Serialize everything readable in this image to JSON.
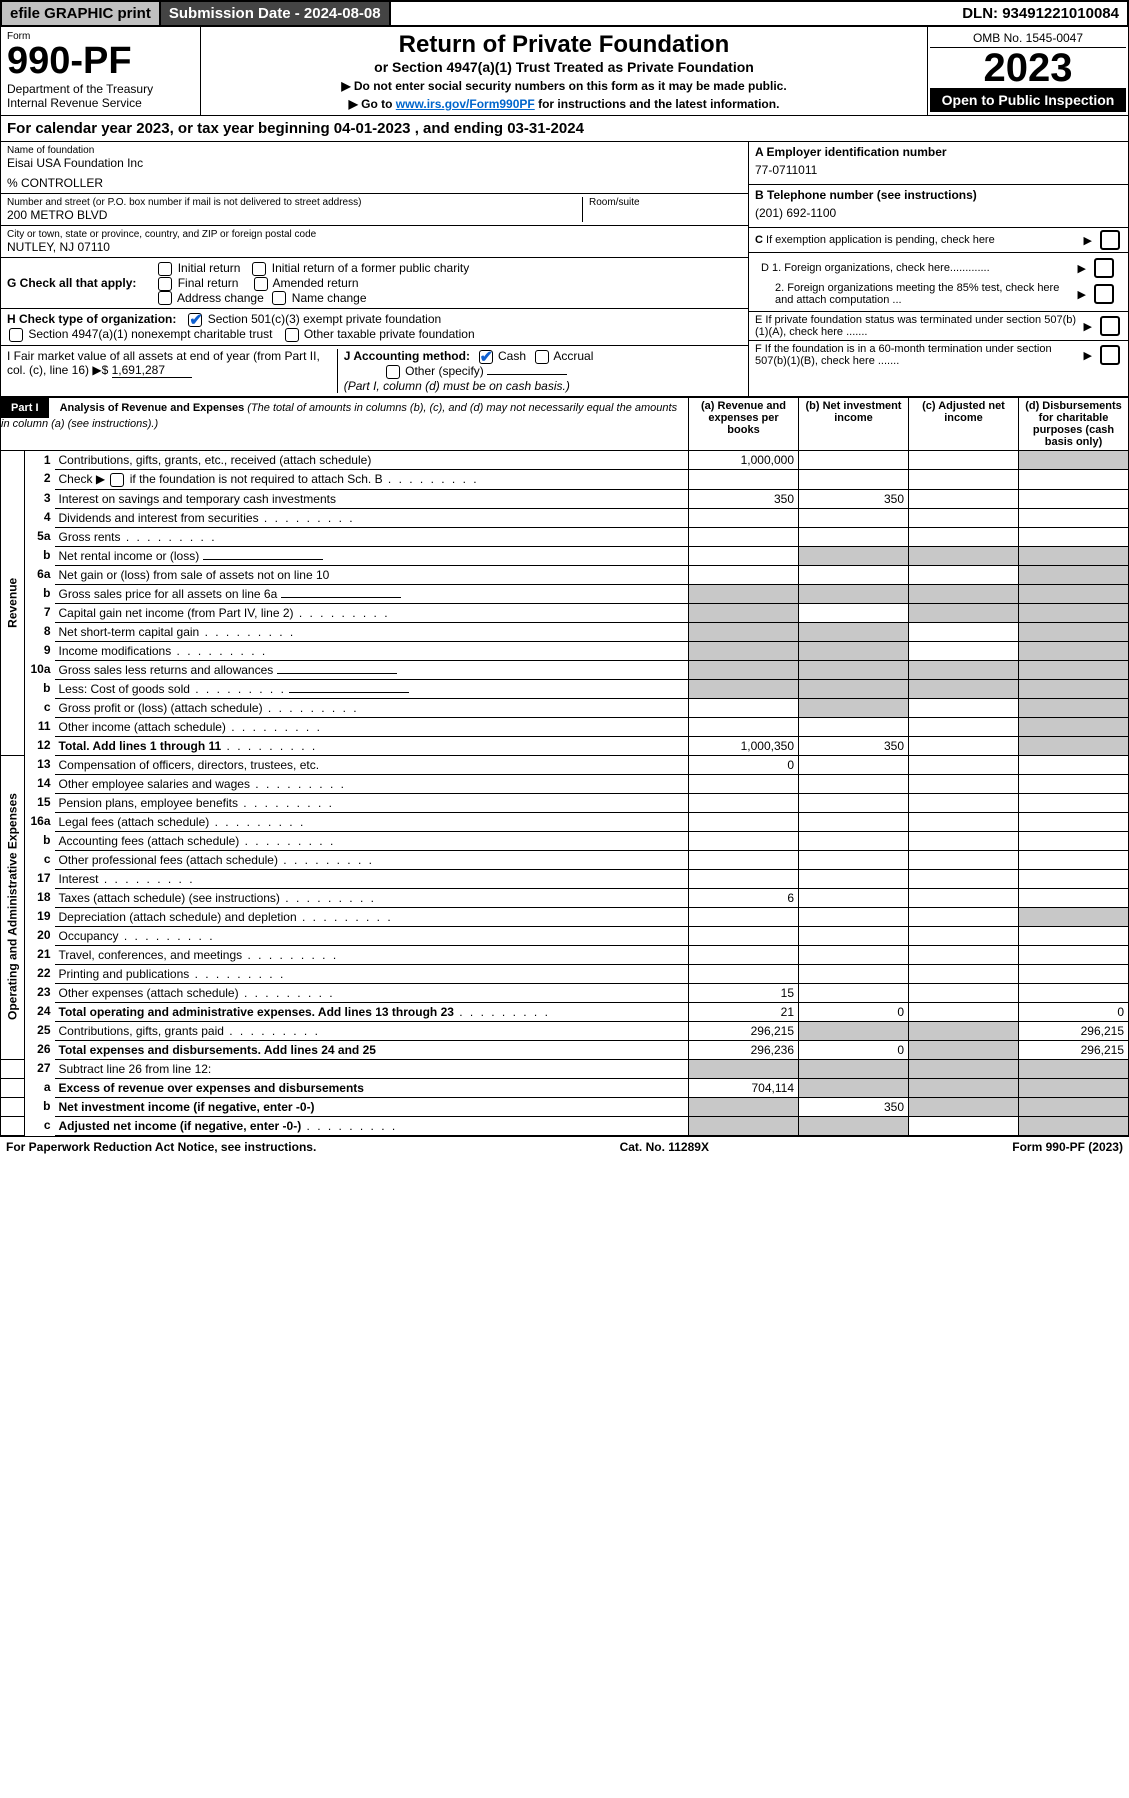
{
  "topbar": {
    "efile": "efile GRAPHIC print",
    "submission": "Submission Date - 2024-08-08",
    "dln": "DLN: 93491221010084"
  },
  "header": {
    "form_label": "Form",
    "form_number": "990-PF",
    "dept": "Department of the Treasury",
    "irs": "Internal Revenue Service",
    "title": "Return of Private Foundation",
    "subtitle": "or Section 4947(a)(1) Trust Treated as Private Foundation",
    "note1": "▶ Do not enter social security numbers on this form as it may be made public.",
    "note2_pre": "▶ Go to ",
    "note2_link": "www.irs.gov/Form990PF",
    "note2_post": " for instructions and the latest information.",
    "omb": "OMB No. 1545-0047",
    "year": "2023",
    "inspection": "Open to Public Inspection"
  },
  "cal_year": "For calendar year 2023, or tax year beginning 04-01-2023                              , and ending 03-31-2024",
  "entity": {
    "name_label": "Name of foundation",
    "name": "Eisai USA Foundation Inc",
    "controller": "% CONTROLLER",
    "addr_label": "Number and street (or P.O. box number if mail is not delivered to street address)",
    "addr": "200 METRO BLVD",
    "room_label": "Room/suite",
    "city_label": "City or town, state or province, country, and ZIP or foreign postal code",
    "city": "NUTLEY, NJ  07110"
  },
  "boxA": {
    "label": "A Employer identification number",
    "val": "77-0711011"
  },
  "boxB": {
    "label": "B Telephone number (see instructions)",
    "val": "(201) 692-1100"
  },
  "boxC": {
    "label": "C If exemption application is pending, check here"
  },
  "boxD": {
    "d1": "D 1. Foreign organizations, check here.............",
    "d2": "2. Foreign organizations meeting the 85% test, check here and attach computation ..."
  },
  "boxE": {
    "label": "E If private foundation status was terminated under section 507(b)(1)(A), check here ......."
  },
  "boxF": {
    "label": "F If the foundation is in a 60-month termination under section 507(b)(1)(B), check here ......."
  },
  "checkG": {
    "label": "G Check all that apply:",
    "opts": [
      "Initial return",
      "Initial return of a former public charity",
      "Final return",
      "Amended return",
      "Address change",
      "Name change"
    ]
  },
  "checkH": {
    "label": "H Check type of organization:",
    "opt1": "Section 501(c)(3) exempt private foundation",
    "opt2": "Section 4947(a)(1) nonexempt charitable trust",
    "opt3": "Other taxable private foundation"
  },
  "boxI": {
    "label": "I Fair market value of all assets at end of year (from Part II, col. (c), line 16)",
    "arrow": "▶$",
    "val": "1,691,287"
  },
  "boxJ": {
    "label": "J Accounting method:",
    "cash": "Cash",
    "accrual": "Accrual",
    "other": "Other (specify)",
    "note": "(Part I, column (d) must be on cash basis.)"
  },
  "part1": {
    "title_part": "Part I",
    "title": "Analysis of Revenue and Expenses",
    "title_note": "(The total of amounts in columns (b), (c), and (d) may not necessarily equal the amounts in column (a) (see instructions).)",
    "cols": {
      "a": "(a) Revenue and expenses per books",
      "b": "(b) Net investment income",
      "c": "(c) Adjusted net income",
      "d": "(d) Disbursements for charitable purposes (cash basis only)"
    },
    "revenue_label": "Revenue",
    "expenses_label": "Operating and Administrative Expenses",
    "lines": {
      "l1": {
        "no": "1",
        "desc": "Contributions, gifts, grants, etc., received (attach schedule)",
        "a": "1,000,000",
        "d_shade": true
      },
      "l2": {
        "no": "2",
        "desc_pre": "Check ▶ ",
        "desc_post": " if the foundation is not required to attach Sch. B",
        "dots": true
      },
      "l3": {
        "no": "3",
        "desc": "Interest on savings and temporary cash investments",
        "a": "350",
        "b": "350"
      },
      "l4": {
        "no": "4",
        "desc": "Dividends and interest from securities",
        "dots": true
      },
      "l5a": {
        "no": "5a",
        "desc": "Gross rents",
        "dots": true
      },
      "l5b": {
        "no": "b",
        "desc": "Net rental income or (loss)",
        "inline_box": true,
        "bcd_shade": true
      },
      "l6a": {
        "no": "6a",
        "desc": "Net gain or (loss) from sale of assets not on line 10",
        "d_shade": true
      },
      "l6b": {
        "no": "b",
        "desc": "Gross sales price for all assets on line 6a",
        "inline_box": true,
        "all_shade": true
      },
      "l7": {
        "no": "7",
        "desc": "Capital gain net income (from Part IV, line 2)",
        "dots": true,
        "a_shade": true,
        "cd_shade": true
      },
      "l8": {
        "no": "8",
        "desc": "Net short-term capital gain",
        "dots": true,
        "ab_shade": true,
        "d_shade": true
      },
      "l9": {
        "no": "9",
        "desc": "Income modifications",
        "dots": true,
        "ab_shade": true,
        "d_shade": true
      },
      "l10a": {
        "no": "10a",
        "desc": "Gross sales less returns and allowances",
        "inline_box": true,
        "all_shade": true
      },
      "l10b": {
        "no": "b",
        "desc": "Less: Cost of goods sold",
        "dots": true,
        "inline_box": true,
        "all_shade": true
      },
      "l10c": {
        "no": "c",
        "desc": "Gross profit or (loss) (attach schedule)",
        "dots": true,
        "b_shade": true,
        "d_shade": true
      },
      "l11": {
        "no": "11",
        "desc": "Other income (attach schedule)",
        "dots": true,
        "d_shade": true
      },
      "l12": {
        "no": "12",
        "desc": "Total. Add lines 1 through 11",
        "bold": true,
        "dots": true,
        "a": "1,000,350",
        "b": "350",
        "d_shade": true
      },
      "l13": {
        "no": "13",
        "desc": "Compensation of officers, directors, trustees, etc.",
        "a": "0"
      },
      "l14": {
        "no": "14",
        "desc": "Other employee salaries and wages",
        "dots": true
      },
      "l15": {
        "no": "15",
        "desc": "Pension plans, employee benefits",
        "dots": true
      },
      "l16a": {
        "no": "16a",
        "desc": "Legal fees (attach schedule)",
        "dots": true
      },
      "l16b": {
        "no": "b",
        "desc": "Accounting fees (attach schedule)",
        "dots": true
      },
      "l16c": {
        "no": "c",
        "desc": "Other professional fees (attach schedule)",
        "dots": true
      },
      "l17": {
        "no": "17",
        "desc": "Interest",
        "dots": true
      },
      "l18": {
        "no": "18",
        "desc": "Taxes (attach schedule) (see instructions)",
        "dots": true,
        "a": "6"
      },
      "l19": {
        "no": "19",
        "desc": "Depreciation (attach schedule) and depletion",
        "dots": true,
        "d_shade": true
      },
      "l20": {
        "no": "20",
        "desc": "Occupancy",
        "dots": true
      },
      "l21": {
        "no": "21",
        "desc": "Travel, conferences, and meetings",
        "dots": true
      },
      "l22": {
        "no": "22",
        "desc": "Printing and publications",
        "dots": true
      },
      "l23": {
        "no": "23",
        "desc": "Other expenses (attach schedule)",
        "dots": true,
        "a": "15"
      },
      "l24": {
        "no": "24",
        "desc": "Total operating and administrative expenses. Add lines 13 through 23",
        "bold": true,
        "dots": true,
        "a": "21",
        "b": "0",
        "d": "0"
      },
      "l25": {
        "no": "25",
        "desc": "Contributions, gifts, grants paid",
        "dots": true,
        "a": "296,215",
        "b_shade": true,
        "c_shade": true,
        "d": "296,215"
      },
      "l26": {
        "no": "26",
        "desc": "Total expenses and disbursements. Add lines 24 and 25",
        "bold": true,
        "a": "296,236",
        "b": "0",
        "c_shade": true,
        "d": "296,215"
      },
      "l27": {
        "no": "27",
        "desc": "Subtract line 26 from line 12:",
        "all_shade": true
      },
      "l27a": {
        "no": "a",
        "desc": "Excess of revenue over expenses and disbursements",
        "bold": true,
        "a": "704,114",
        "bcd_shade": true
      },
      "l27b": {
        "no": "b",
        "desc": "Net investment income (if negative, enter -0-)",
        "bold": true,
        "a_shade": true,
        "b": "350",
        "cd_shade": true
      },
      "l27c": {
        "no": "c",
        "desc": "Adjusted net income (if negative, enter -0-)",
        "bold": true,
        "dots": true,
        "ab_shade": true,
        "d_shade": true
      }
    }
  },
  "footer": {
    "left": "For Paperwork Reduction Act Notice, see instructions.",
    "mid": "Cat. No. 11289X",
    "right": "Form 990-PF (2023)"
  },
  "colors": {
    "shade": "#c8c8c8",
    "link": "#0056b3",
    "check": "#1060d0"
  }
}
